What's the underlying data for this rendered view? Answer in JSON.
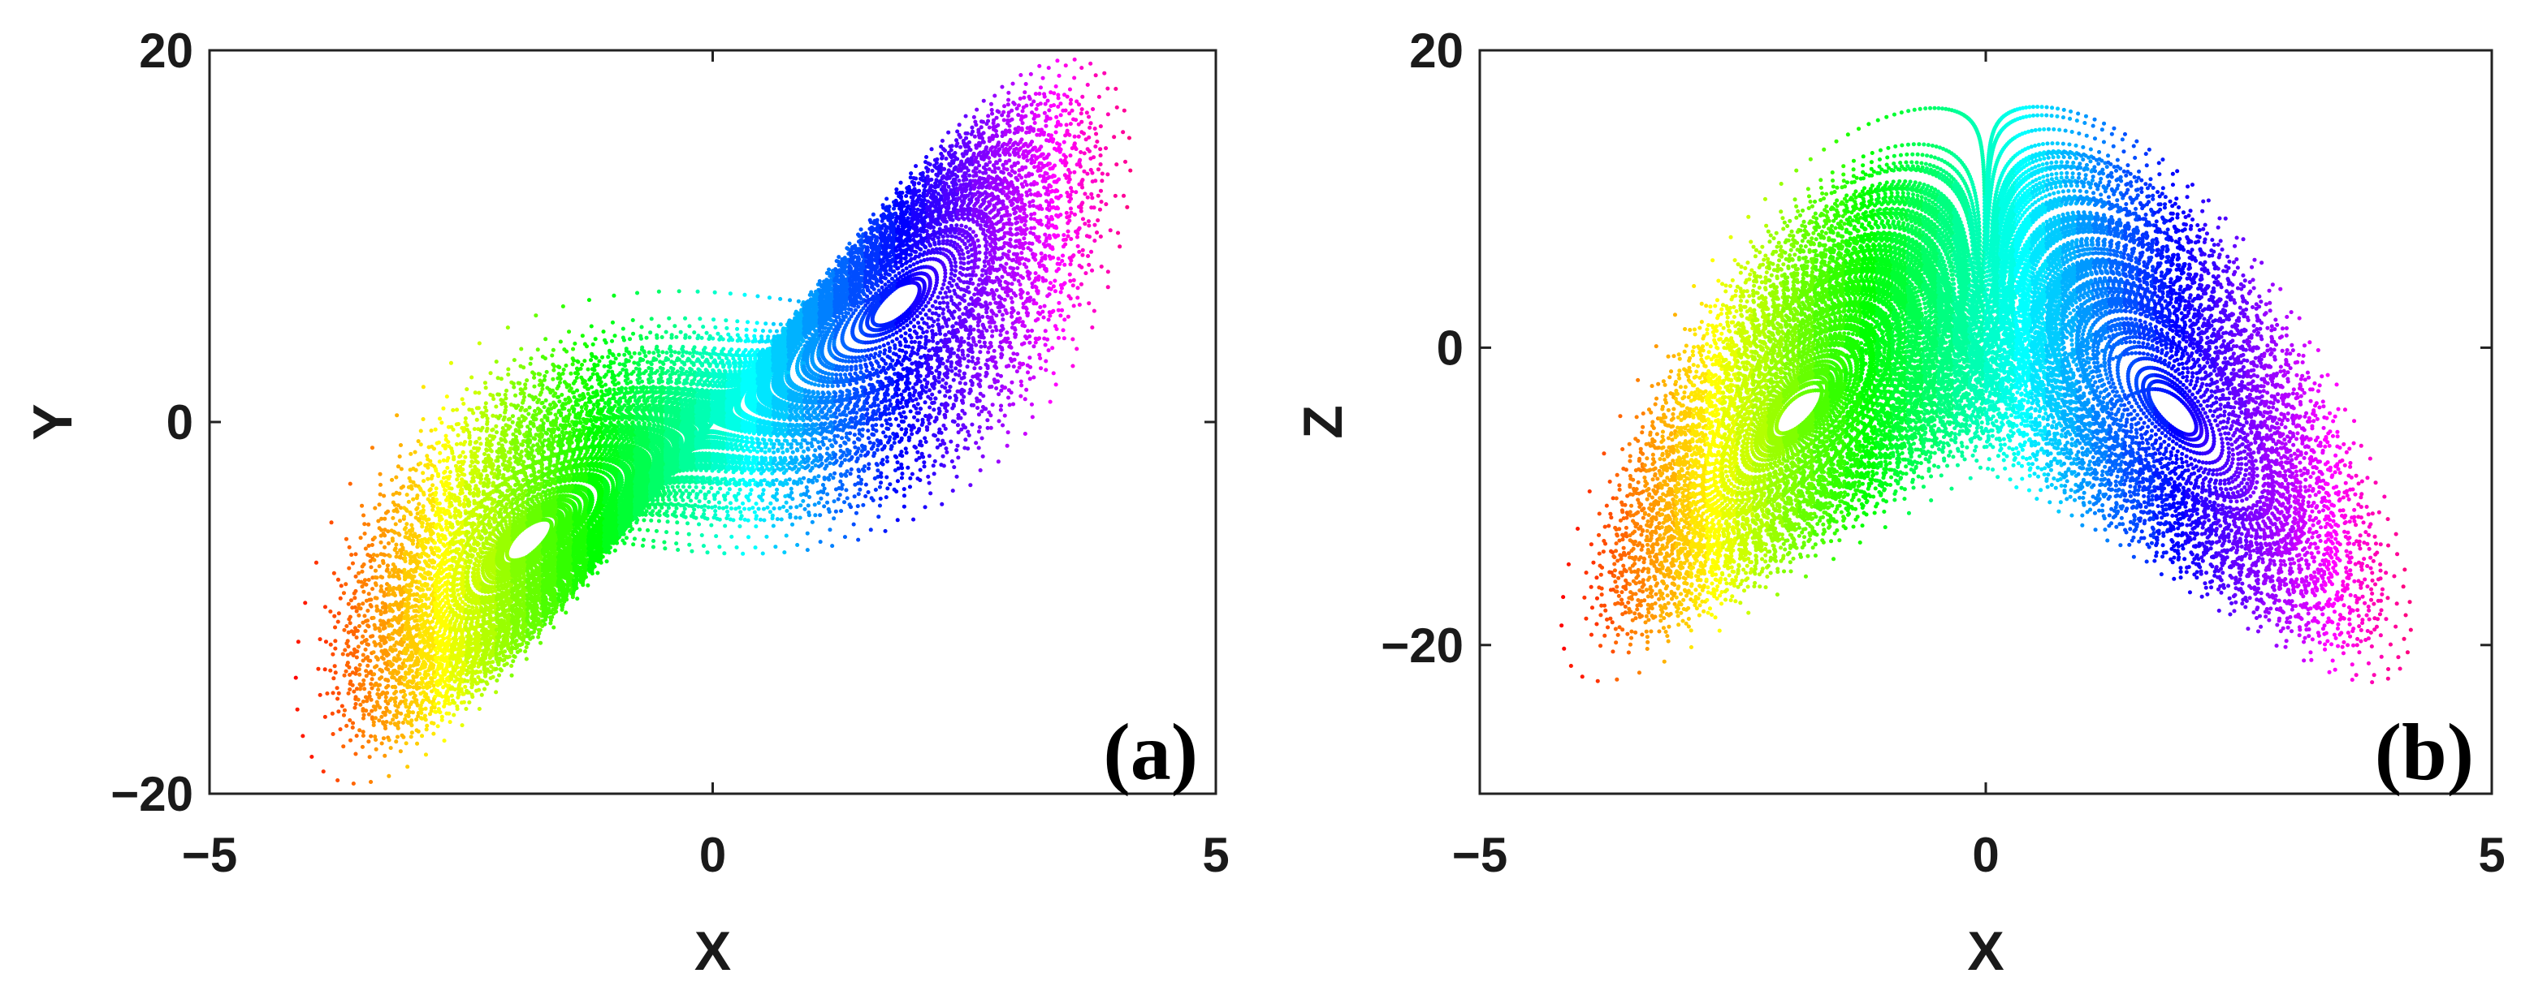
{
  "chart_data": [
    {
      "type": "scatter",
      "panel_label": "(a)",
      "xlabel": "X",
      "ylabel": "Y",
      "xlim": [
        -5,
        5
      ],
      "ylim": [
        -20,
        20
      ],
      "xticks": [
        -5,
        0,
        5
      ],
      "yticks": [
        -20,
        0,
        20
      ],
      "tick_labels_x": [
        "−5",
        "0",
        "5"
      ],
      "tick_labels_y": [
        "−20",
        "0",
        "20"
      ],
      "colormap": "hsv (red → orange → yellow → green → cyan → blue → magenta → red) by X",
      "attractor": {
        "x_range": [
          -4.2,
          4.1
        ],
        "y_range": [
          -19.5,
          19.5
        ],
        "projection": "X-Y",
        "shape": "double-scroll (figure eight), lobes centred near X = ±1.8, crossing at origin"
      },
      "grid": false,
      "legend": "none"
    },
    {
      "type": "scatter",
      "panel_label": "(b)",
      "xlabel": "X",
      "ylabel": "Z",
      "xlim": [
        -5,
        5
      ],
      "ylim": [
        -30,
        20
      ],
      "xticks": [
        -5,
        0,
        5
      ],
      "yticks": [
        -20,
        0,
        20
      ],
      "tick_labels_x": [
        "−5",
        "0",
        "5"
      ],
      "tick_labels_y": [
        "−20",
        "0",
        "20"
      ],
      "colormap": "hsv (red → orange → yellow → green → cyan → blue → magenta → red) by X",
      "attractor": {
        "x_range": [
          -4.2,
          4.2
        ],
        "z_range": [
          -22.5,
          16.2
        ],
        "projection": "X-Z",
        "shape": "symmetric butterfly / V shape, cusp at X = 0, Z = 0, lobe minima near X = ±1, Z = -22"
      },
      "grid": false,
      "legend": "none"
    }
  ]
}
